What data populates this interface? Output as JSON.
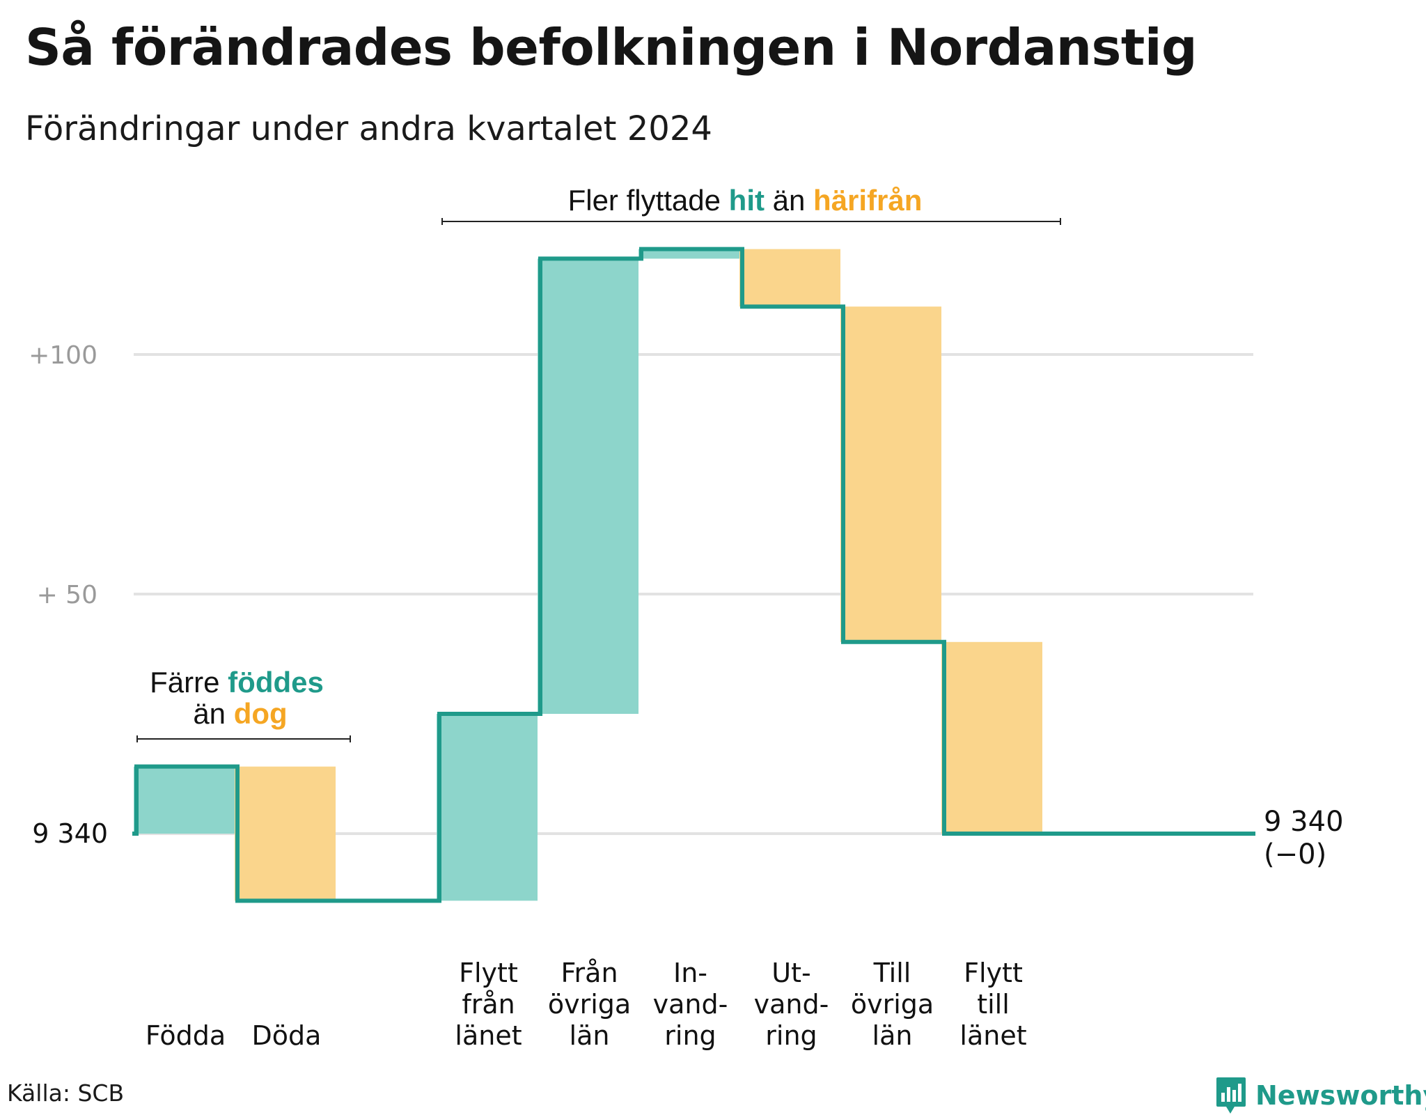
{
  "title": "Så förändrades befolkningen i Nordanstig",
  "subtitle": "Förändringar under andra kvartalet 2024",
  "source": "Källa: SCB",
  "brand": {
    "name": "Newsworthy",
    "icon": "bar-chart-speech-bubble-icon"
  },
  "colors": {
    "positive": "#8dd5cb",
    "negative": "#fad58c",
    "line": "#1f9a8a",
    "accent_in": "#1f9a8a",
    "accent_out": "#f5a623",
    "grid": "#e2e2e2",
    "tick": "#9a9a9a"
  },
  "chart_data": {
    "type": "waterfall",
    "base_population": 9340,
    "y_axis": {
      "ticks": [
        {
          "value": 0,
          "label": "9  340"
        },
        {
          "value": 50,
          "label": "+  50"
        },
        {
          "value": 100,
          "label": "+100"
        }
      ],
      "range": [
        -22,
        130
      ],
      "grid": true
    },
    "steps": [
      {
        "label": "Födda",
        "label_lines": [
          "Födda"
        ],
        "value": 14,
        "direction": "in"
      },
      {
        "label": "Döda",
        "label_lines": [
          "Döda"
        ],
        "value": -28,
        "direction": "out"
      },
      {
        "label": "Flytt från länet",
        "label_lines": [
          "Flytt",
          "från",
          "länet"
        ],
        "value": 39,
        "direction": "in"
      },
      {
        "label": "Från övriga län",
        "label_lines": [
          "Från",
          "övriga",
          "län"
        ],
        "value": 95,
        "direction": "in"
      },
      {
        "label": "Invandring",
        "label_lines": [
          "In-",
          "vand-",
          "ring"
        ],
        "value": 2,
        "direction": "in"
      },
      {
        "label": "Utvandring",
        "label_lines": [
          "Ut-",
          "vand-",
          "ring"
        ],
        "value": -12,
        "direction": "out"
      },
      {
        "label": "Till övriga län",
        "label_lines": [
          "Till",
          "övriga",
          "län"
        ],
        "value": -70,
        "direction": "out"
      },
      {
        "label": "Flytt till länet",
        "label_lines": [
          "Flytt",
          "till",
          "länet"
        ],
        "value": -40,
        "direction": "out"
      }
    ],
    "end_label": {
      "value": "9 340",
      "change": "(−0)"
    },
    "annotations": [
      {
        "text_before": "Färre ",
        "highlight_in": "föddes",
        "line2_before": "än ",
        "highlight_out": "dog",
        "spans_steps": [
          0,
          1
        ]
      },
      {
        "text_before": "Fler flyttade ",
        "highlight_in": "hit",
        "text_middle": "  än ",
        "highlight_out": "härifrån",
        "spans_steps": [
          2,
          7
        ]
      }
    ]
  }
}
